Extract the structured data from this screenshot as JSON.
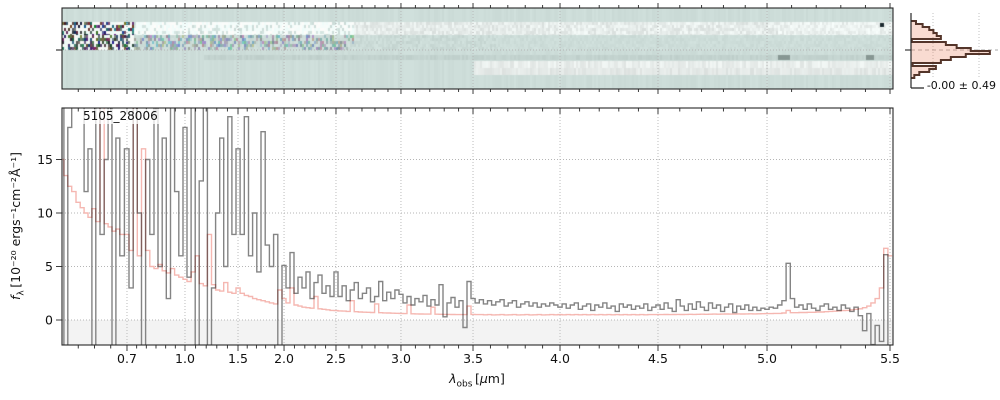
{
  "figure": {
    "colors": {
      "flux_line": "#848484",
      "error_line": "#f5b7b1",
      "hist_stroke": "#54352a",
      "hist_fill": "rgba(236,146,115,0.33)",
      "heatmap_background": "#cdddd9",
      "frame": "#262626",
      "grid": "#b5b5b5",
      "below_zero_band": "#f3f3f3"
    }
  },
  "chart_data": [
    {
      "id": "spectrum_2d",
      "type": "heatmap",
      "description": "2D rectified spectrum strip: noisy dark speckle at blue end, bright source trace bands, pale teal background",
      "x_range_um": [
        0.6,
        5.51
      ],
      "noise_seed": 42,
      "center_tick_y_frac": 0.52
    },
    {
      "id": "residual_histogram",
      "type": "histogram",
      "orientation": "horizontal",
      "annotation": "-0.00 ± 0.49",
      "bin_fractions_top_to_bottom": [
        0.06,
        0.14,
        0.22,
        0.27,
        0.31,
        0.36,
        0.01,
        0.42,
        0.55,
        0.72,
        0.95,
        0.66,
        0.48,
        0.36,
        0.02,
        0.3,
        0.22,
        0.1,
        0.04
      ]
    },
    {
      "id": "spectrum_1d",
      "type": "line",
      "title": "5105_28006",
      "xlabel_parts": {
        "sym": "λ",
        "sub": "obs",
        "unit_pre": "[",
        "unit_mu": "μ",
        "unit_post": "m]"
      },
      "ylabel_parts": {
        "sym": "f",
        "sub": "λ",
        "rest": "[10⁻²⁰ ergs⁻¹cm⁻²Å⁻¹]"
      },
      "x_tick_labels": [
        "0.7",
        "1.0",
        "1.5",
        "2.0",
        "2.5",
        "3.0",
        "3.5",
        "4.0",
        "4.5",
        "5.0",
        "5.5"
      ],
      "x_tick_values": [
        0.7,
        1.0,
        1.5,
        2.0,
        2.5,
        3.0,
        3.5,
        4.0,
        4.5,
        5.0,
        5.5
      ],
      "y_tick_labels": [
        "0",
        "5",
        "10",
        "15"
      ],
      "y_tick_values": [
        0,
        5,
        10,
        15
      ],
      "ylim": [
        -2.34,
        19.8
      ],
      "x_scale_anchors": [
        [
          0.6,
          0.0
        ],
        [
          0.7,
          0.0782
        ],
        [
          1.0,
          0.148
        ],
        [
          1.5,
          0.2118
        ],
        [
          2.0,
          0.2672
        ],
        [
          2.5,
          0.3297
        ],
        [
          3.0,
          0.4079
        ],
        [
          3.5,
          0.4946
        ],
        [
          4.0,
          0.5993
        ],
        [
          4.5,
          0.7172
        ],
        [
          5.0,
          0.8484
        ],
        [
          5.5,
          0.9964
        ],
        [
          5.51,
          1.0
        ]
      ],
      "x": [
        0.6,
        0.606,
        0.612,
        0.618,
        0.625,
        0.631,
        0.637,
        0.643,
        0.649,
        0.655,
        0.662,
        0.668,
        0.674,
        0.68,
        0.686,
        0.692,
        0.7,
        0.721,
        0.743,
        0.764,
        0.786,
        0.807,
        0.829,
        0.85,
        0.871,
        0.893,
        0.914,
        0.936,
        0.957,
        0.979,
        1.0,
        1.038,
        1.077,
        1.115,
        1.154,
        1.192,
        1.231,
        1.269,
        1.308,
        1.346,
        1.385,
        1.423,
        1.462,
        1.5,
        1.545,
        1.591,
        1.636,
        1.682,
        1.727,
        1.773,
        1.818,
        1.864,
        1.909,
        1.955,
        2.0,
        2.038,
        2.077,
        2.115,
        2.154,
        2.192,
        2.231,
        2.269,
        2.308,
        2.346,
        2.385,
        2.423,
        2.462,
        2.5,
        2.531,
        2.563,
        2.594,
        2.625,
        2.656,
        2.688,
        2.719,
        2.75,
        2.781,
        2.813,
        2.844,
        2.875,
        2.906,
        2.938,
        2.969,
        3.0,
        3.028,
        3.056,
        3.083,
        3.111,
        3.139,
        3.167,
        3.194,
        3.222,
        3.25,
        3.278,
        3.306,
        3.333,
        3.361,
        3.389,
        3.417,
        3.444,
        3.472,
        3.5,
        3.524,
        3.548,
        3.571,
        3.595,
        3.619,
        3.643,
        3.667,
        3.69,
        3.714,
        3.738,
        3.762,
        3.786,
        3.81,
        3.833,
        3.857,
        3.881,
        3.905,
        3.929,
        3.952,
        3.976,
        4.0,
        4.021,
        4.042,
        4.063,
        4.083,
        4.104,
        4.125,
        4.146,
        4.167,
        4.188,
        4.208,
        4.229,
        4.25,
        4.271,
        4.292,
        4.313,
        4.333,
        4.354,
        4.375,
        4.396,
        4.417,
        4.438,
        4.458,
        4.479,
        4.5,
        4.519,
        4.537,
        4.556,
        4.574,
        4.593,
        4.611,
        4.63,
        4.648,
        4.667,
        4.685,
        4.704,
        4.722,
        4.741,
        4.759,
        4.778,
        4.796,
        4.815,
        4.833,
        4.852,
        4.87,
        4.889,
        4.907,
        4.926,
        4.944,
        4.963,
        4.981,
        5.0,
        5.017,
        5.034,
        5.052,
        5.069,
        5.086,
        5.103,
        5.121,
        5.138,
        5.155,
        5.172,
        5.19,
        5.207,
        5.224,
        5.241,
        5.259,
        5.276,
        5.293,
        5.31,
        5.328,
        5.345,
        5.362,
        5.379,
        5.397,
        5.414,
        5.431,
        5.448,
        5.466,
        5.483,
        5.5
      ],
      "series": [
        {
          "name": "flux",
          "values": [
            25,
            -5,
            18,
            22,
            25,
            21,
            12,
            16,
            -3,
            25,
            8,
            15,
            25,
            -4,
            17,
            6,
            16,
            3,
            25,
            10,
            -4,
            15,
            8,
            25,
            5,
            17,
            2,
            25,
            12,
            6,
            18,
            4,
            25,
            -4,
            13,
            25,
            -4,
            3,
            10,
            17,
            5,
            19,
            8,
            16,
            8,
            19,
            6,
            10,
            4.5,
            17.6,
            7,
            5,
            8,
            -4,
            5.1,
            3,
            6.3,
            2.5,
            4,
            3,
            4.5,
            2,
            3.5,
            4.2,
            2.5,
            3.2,
            2.2,
            4.5,
            2.2,
            3.2,
            1.8,
            2.8,
            3.5,
            2,
            2.5,
            3,
            1.7,
            2.2,
            3.6,
            1.8,
            2.6,
            2,
            2.8,
            2.4,
            1.6,
            2.2,
            1.4,
            2.0,
            1.7,
            2.3,
            1.3,
            1.9,
            1.4,
            3.3,
            0.3,
            1.6,
            2.1,
            1.2,
            1.8,
            -0.7,
            3.6,
            2.0,
            1.6,
            1.9,
            1.5,
            1.8,
            1.4,
            1.7,
            1.9,
            1.3,
            1.6,
            1.8,
            1.2,
            1.5,
            1.7,
            1.3,
            1.6,
            1.2,
            1.5,
            1.3,
            1.6,
            1.4,
            1.2,
            1.5,
            1.1,
            1.4,
            1.6,
            1.0,
            1.3,
            1.5,
            0.9,
            1.4,
            1.2,
            1.6,
            1.1,
            1.3,
            0.8,
            1.5,
            1.2,
            1.4,
            1.0,
            1.3,
            1.1,
            1.5,
            0.9,
            1.2,
            1.4,
            1.0,
            1.6,
            1.1,
            0.8,
            1.9,
            1.3,
            0.9,
            1.5,
            1.0,
            1.7,
            1.2,
            0.9,
            1.6,
            1.1,
            1.4,
            0.8,
            1.2,
            1.5,
            0.7,
            1.3,
            1.0,
            1.4,
            0.9,
            1.2,
            0.9,
            1.1,
            1.0,
            1.2,
            1.1,
            1.4,
            1.8,
            5.3,
            2.0,
            1.2,
            1.4,
            1.0,
            1.5,
            1.1,
            0.9,
            1.3,
            1.5,
            1.0,
            1.2,
            0.9,
            1.4,
            1.1,
            0.8,
            1.2,
            0.4,
            -1.0,
            0.6,
            -2.3,
            -0.5,
            -2.0,
            6.1,
            -2.5
          ]
        },
        {
          "name": "uncertainty",
          "values": [
            15,
            13.5,
            12.5,
            12,
            11,
            10.5,
            10,
            9.6,
            10.4,
            9.2,
            22,
            9.0,
            8.7,
            8.3,
            8.5,
            8.0,
            8,
            6.5,
            20,
            6,
            16,
            6.5,
            5,
            4.8,
            5.2,
            4.6,
            4.4,
            4.8,
            4.2,
            4.0,
            3.8,
            3.6,
            4.5,
            6.0,
            3.4,
            3.2,
            8.0,
            3.3,
            2.8,
            2.7,
            3.5,
            2.6,
            2.5,
            3.0,
            2.5,
            2.3,
            2.2,
            2.0,
            1.9,
            1.8,
            1.7,
            1.6,
            1.5,
            2.8,
            2.0,
            1.6,
            3.0,
            1.4,
            1.3,
            1.2,
            1.15,
            1.1,
            2.2,
            1.05,
            1.0,
            0.95,
            0.9,
            0.88,
            0.85,
            0.83,
            0.8,
            1.8,
            0.78,
            0.75,
            0.73,
            0.72,
            0.7,
            1.5,
            0.68,
            0.66,
            0.65,
            0.64,
            0.63,
            0.62,
            0.6,
            1.4,
            0.58,
            0.57,
            0.56,
            0.55,
            0.55,
            1.2,
            0.54,
            0.53,
            0.52,
            0.52,
            0.51,
            0.5,
            0.5,
            0.5,
            1.3,
            0.52,
            0.5,
            0.5,
            0.49,
            0.5,
            0.48,
            0.49,
            0.5,
            0.48,
            0.49,
            0.5,
            0.48,
            0.49,
            0.5,
            0.48,
            0.49,
            0.5,
            0.48,
            0.49,
            0.5,
            0.49,
            0.5,
            0.49,
            0.5,
            0.49,
            0.5,
            0.49,
            0.5,
            0.49,
            0.5,
            0.49,
            0.5,
            0.49,
            0.5,
            0.49,
            0.5,
            0.49,
            0.5,
            0.49,
            0.5,
            0.49,
            0.5,
            0.49,
            0.5,
            0.5,
            0.5,
            0.5,
            0.51,
            0.5,
            0.51,
            0.52,
            0.51,
            0.52,
            0.53,
            0.52,
            0.53,
            0.54,
            0.53,
            0.54,
            0.55,
            0.54,
            0.55,
            0.56,
            0.55,
            0.56,
            0.57,
            0.56,
            0.57,
            0.58,
            0.57,
            0.58,
            0.59,
            0.6,
            0.6,
            0.62,
            0.62,
            0.65,
            0.9,
            0.68,
            0.68,
            0.7,
            0.7,
            0.72,
            0.72,
            0.75,
            0.75,
            0.78,
            0.8,
            0.82,
            0.85,
            0.88,
            0.9,
            0.95,
            1.0,
            1.05,
            1.15,
            1.3,
            1.6,
            2.0,
            3.0,
            6.7,
            6.0
          ]
        }
      ]
    }
  ]
}
